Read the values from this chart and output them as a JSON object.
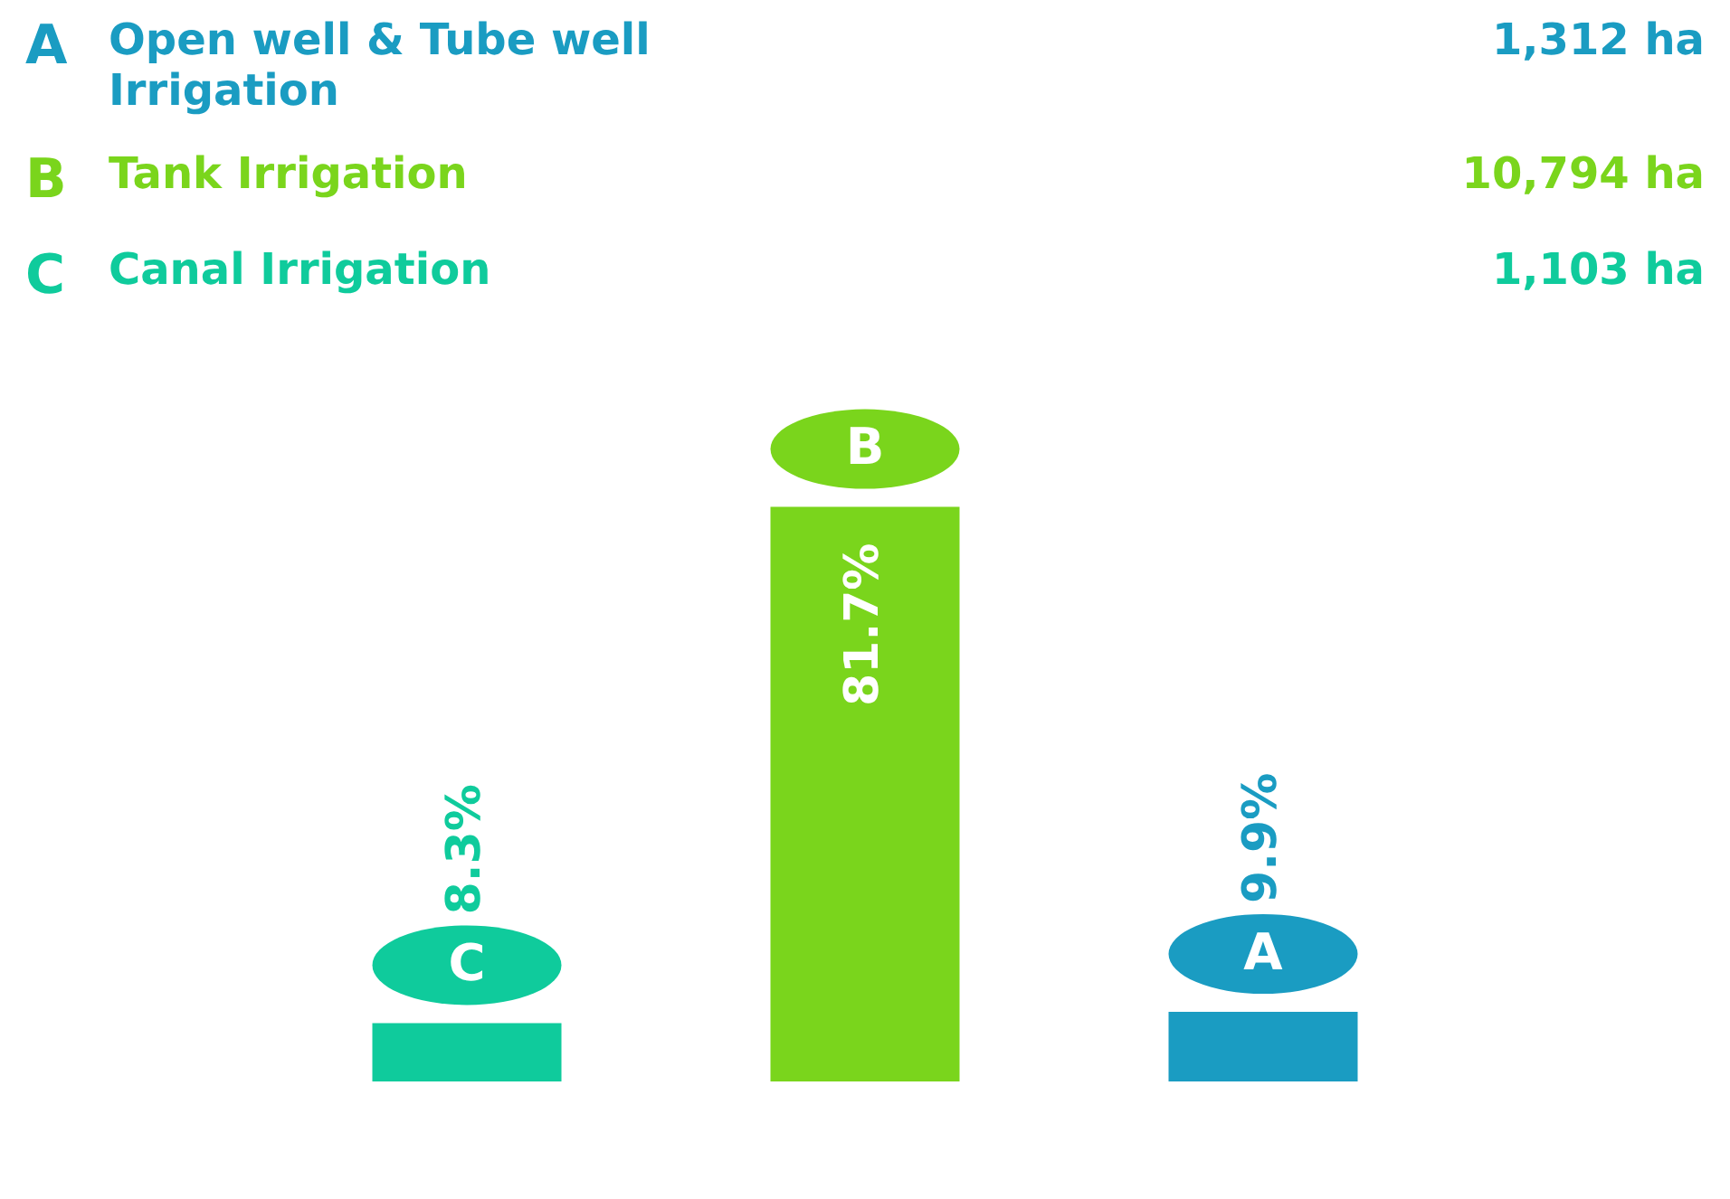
{
  "chart_data": {
    "type": "bar",
    "categories": [
      "C",
      "B",
      "A"
    ],
    "values": [
      8.3,
      81.7,
      9.9
    ],
    "colors": [
      "#0fcb9c",
      "#7ad51c",
      "#1a9cc2"
    ],
    "value_labels": [
      "8.3%",
      "81.7%",
      "9.9%"
    ],
    "annotations": [
      "Open well & Tube well Irrigation",
      "1,312 ha",
      "Tank Irrigation",
      "10,794 ha",
      "Canal Irrigation",
      "1,103 ha"
    ]
  }
}
